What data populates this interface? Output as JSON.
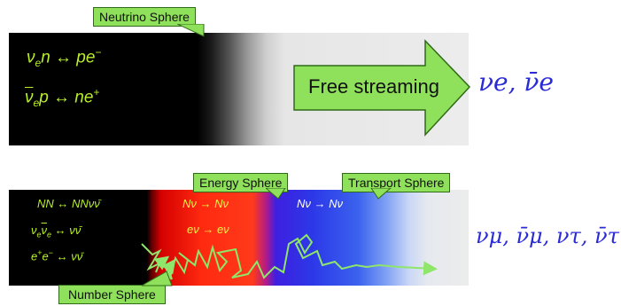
{
  "top": {
    "sphere_label": "Neutrino Sphere",
    "reaction1": {
      "nu": "ν",
      "sub": "e",
      "rest": "n ↔ pe",
      "sup": "−"
    },
    "reaction2": {
      "nu": "ν",
      "sub": "e",
      "rest": "p ↔ ne",
      "sup": "+"
    },
    "arrow_label": "Free streaming",
    "flavors": "νe, ν̄e"
  },
  "bottom": {
    "labels": {
      "energy": "Energy Sphere",
      "transport": "Transport Sphere",
      "number": "Number Sphere"
    },
    "reactions_black": {
      "r1": "NN ↔ NNνν̄",
      "r2": {
        "a": "ν",
        "a_sub": "e",
        "b": "ν",
        "b_sub": "e",
        "rest": " ↔ νν̄"
      },
      "r3": {
        "e1": "e",
        "e1_sup": "+",
        "e2": "e",
        "e2_sup": "−",
        "rest": " ↔ νν̄"
      }
    },
    "reactions_red": {
      "r1": "Nν → Nν",
      "r2": "eν → eν"
    },
    "reactions_blue": {
      "r1": "Nν → Nν"
    },
    "flavors": "νμ, ν̄μ, ντ, ν̄τ"
  },
  "colors": {
    "label_fill": "#8fe05a",
    "reaction_green": "#b8ef2a",
    "flavor_blue": "#2a2ad6",
    "random_walk": "#8ee66a"
  }
}
